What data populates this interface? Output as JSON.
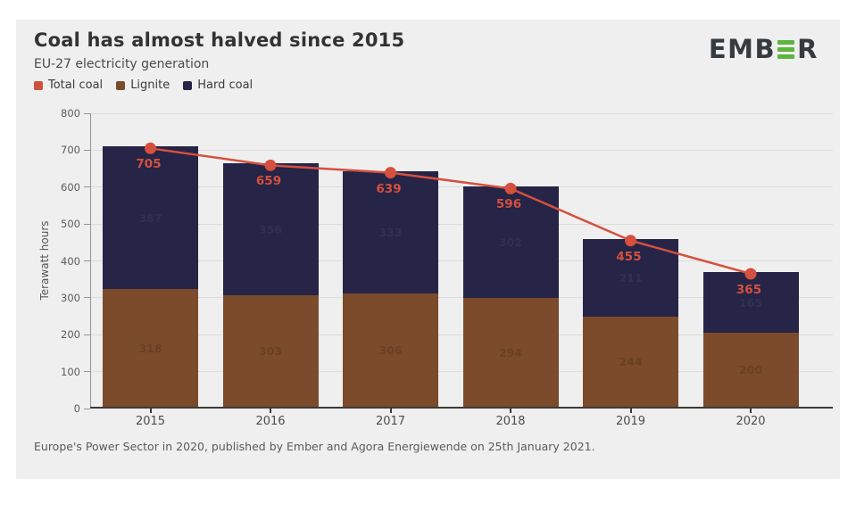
{
  "page": {
    "title": "Coal has almost halved since 2015",
    "subtitle": "EU-27 electricity generation",
    "footer": "Europe's Power Sector in 2020, published by Ember and Agora Energiewende on 25th January 2021."
  },
  "logo": {
    "left": "EMB",
    "right": "R",
    "green_color": "#5cb53f",
    "text_color": "#363b40"
  },
  "legend": {
    "items": [
      {
        "label": "Total coal",
        "color": "#d0503e"
      },
      {
        "label": "Lignite",
        "color": "#7b4b2b"
      },
      {
        "label": "Hard coal",
        "color": "#262447"
      }
    ]
  },
  "chart_data": {
    "type": "bar",
    "subtype": "stacked-bar-with-total-line",
    "title": "Coal has almost halved since 2015",
    "subtitle": "EU-27 electricity generation",
    "categories": [
      "2015",
      "2016",
      "2017",
      "2018",
      "2019",
      "2020"
    ],
    "series": [
      {
        "name": "Lignite",
        "color": "#7b4b2b",
        "values": [
          318,
          303,
          306,
          294,
          244,
          200
        ]
      },
      {
        "name": "Hard coal",
        "color": "#262447",
        "values": [
          387,
          356,
          333,
          302,
          211,
          165
        ]
      }
    ],
    "line": {
      "name": "Total coal",
      "color": "#d5503e",
      "values": [
        705,
        659,
        639,
        596,
        455,
        365
      ]
    },
    "ylabel": "Terawatt hours",
    "xlabel": "",
    "ylim": [
      0,
      800
    ],
    "ytick_step": 100,
    "grid": "horizontal",
    "legend_position": "top-left"
  }
}
